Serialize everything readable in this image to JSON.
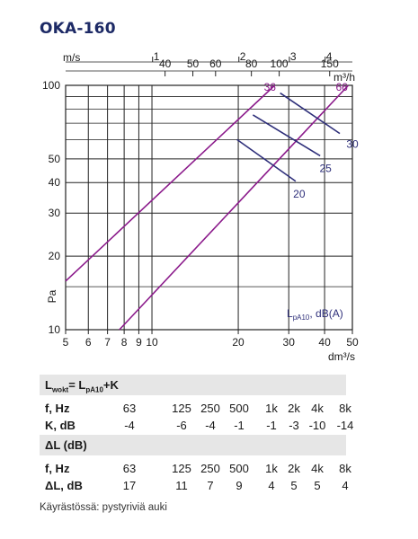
{
  "page": {
    "title": "OKA-160",
    "footnote": "Käyrästössä: pystyriviä auki"
  },
  "colors": {
    "title": "#1d2a66",
    "purple": "#8b1a8b",
    "navy": "#2e2f7a",
    "grid": "#222222",
    "table_header_bg": "#e6e6e6"
  },
  "chart_data": {
    "type": "line",
    "x_scale": "log",
    "y_scale": "log",
    "xlabel": "dm³/s",
    "ylabel": "Pa",
    "xlim": [
      5,
      50
    ],
    "ylim": [
      10,
      100
    ],
    "x_ticks": [
      5,
      6,
      7,
      8,
      9,
      10,
      20,
      30,
      40,
      50
    ],
    "y_ticks": [
      10,
      20,
      30,
      40,
      50,
      100
    ],
    "top_axis_m3h": {
      "label": "m³/h",
      "ticks": [
        40,
        50,
        60,
        80,
        100,
        150
      ]
    },
    "top_axis_ms": {
      "label": "m/s",
      "ticks": [
        1,
        2,
        3,
        4
      ]
    },
    "grid": true,
    "series": [
      {
        "name": "36",
        "color": "#8b1a8b",
        "x": [
          5,
          26.8
        ],
        "y": [
          15.8,
          100
        ]
      },
      {
        "name": "66",
        "color": "#8b1a8b",
        "x": [
          7.7,
          48.4
        ],
        "y": [
          10,
          100
        ]
      },
      {
        "name": "20",
        "color": "#2e2f7a",
        "x": [
          19.8,
          31.7
        ],
        "y": [
          60,
          40.5
        ]
      },
      {
        "name": "25",
        "color": "#2e2f7a",
        "x": [
          22.5,
          38.6
        ],
        "y": [
          75.7,
          51.5
        ]
      },
      {
        "name": "30",
        "color": "#2e2f7a",
        "x": [
          28,
          45.2
        ],
        "y": [
          93,
          63.5
        ]
      }
    ],
    "annotation": "LpA10, dB(A)"
  },
  "table1": {
    "header_main": "L",
    "header_sub": "wokt",
    "header_rest": "= L",
    "header_sub2": "pA10",
    "header_end": "+K",
    "row1_label": "f, Hz",
    "row1_values": [
      "63",
      "125",
      "250",
      "500",
      "1k",
      "2k",
      "4k",
      "8k"
    ],
    "row2_label": "K, dB",
    "row2_values": [
      "-4",
      "-6",
      "-4",
      "-1",
      "-1",
      "-3",
      "-10",
      "-14"
    ]
  },
  "table2": {
    "header": "ΔL (dB)",
    "row1_label": "f, Hz",
    "row1_values": [
      "63",
      "125",
      "250",
      "500",
      "1k",
      "2k",
      "4k",
      "8k"
    ],
    "row2_label": "ΔL, dB",
    "row2_values": [
      "17",
      "11",
      "7",
      "9",
      "4",
      "5",
      "5",
      "4"
    ]
  }
}
